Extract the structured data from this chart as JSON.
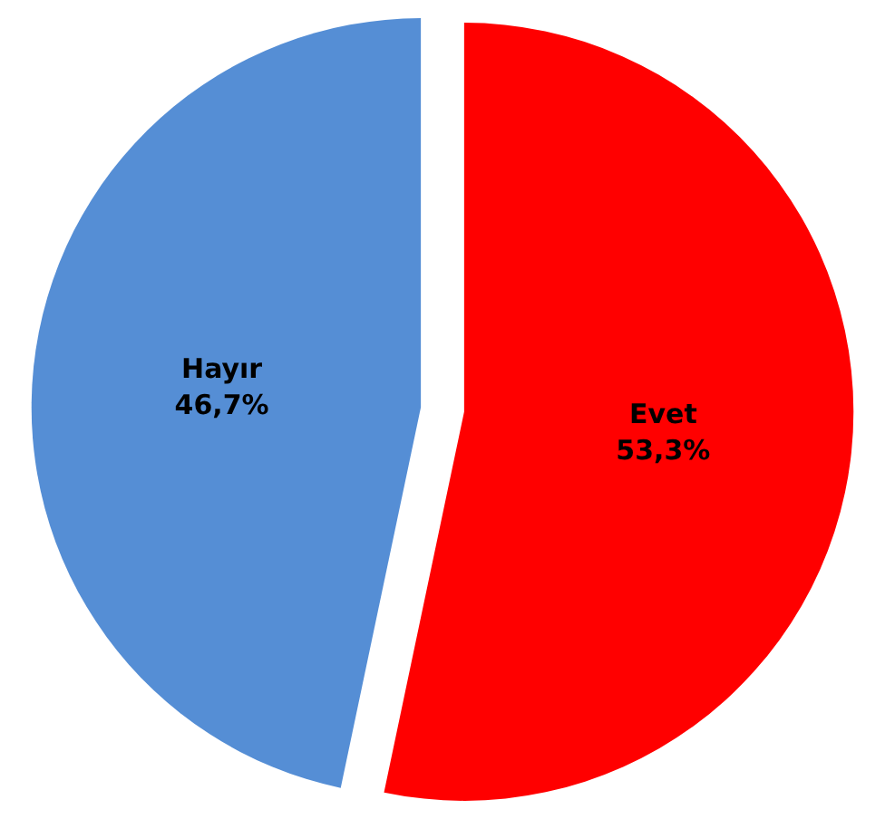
{
  "chart_data": {
    "type": "pie",
    "categories": [
      "Evet",
      "Hayır"
    ],
    "values": [
      53.3,
      46.7
    ],
    "colors": [
      "#ff0000",
      "#558ed5"
    ],
    "value_labels": [
      "53,3%",
      "46,7%"
    ],
    "legend": false
  }
}
